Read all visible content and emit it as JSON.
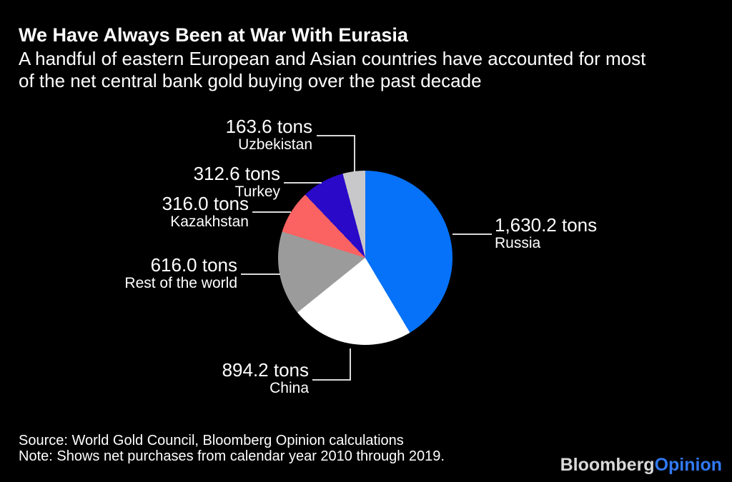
{
  "header": {
    "title": "We Have Always Been at War With Eurasia",
    "subtitle_line1": "A handful of eastern European and Asian countries have accounted for most",
    "subtitle_line2": "of the net central bank gold buying over the past decade"
  },
  "chart_data": {
    "type": "pie",
    "title": "We Have Always Been at War With Eurasia",
    "unit": "tons",
    "start_angle_deg": 0,
    "direction": "clockwise",
    "legend_position": "callout-labels",
    "background_color": "#000000",
    "leader_line_color": "#d9d9d9",
    "slices": [
      {
        "label": "Russia",
        "value": 1630.2,
        "value_text": "1,630.2 tons",
        "color": "#0672fa"
      },
      {
        "label": "China",
        "value": 894.2,
        "value_text": "894.2 tons",
        "color": "#ffffff"
      },
      {
        "label": "Rest of the world",
        "value": 616.0,
        "value_text": "616.0 tons",
        "color": "#9b9b9b"
      },
      {
        "label": "Kazakhstan",
        "value": 316.0,
        "value_text": "316.0 tons",
        "color": "#fb6262"
      },
      {
        "label": "Turkey",
        "value": 312.6,
        "value_text": "312.6 tons",
        "color": "#2a0ac8"
      },
      {
        "label": "Uzbekistan",
        "value": 163.6,
        "value_text": "163.6 tons",
        "color": "#c8c8ca"
      }
    ]
  },
  "footer": {
    "source": "Source: World Gold Council, Bloomberg Opinion calculations",
    "note": "Note: Shows net purchases from calendar year 2010 through 2019.",
    "logo": {
      "bloomberg": "Bloomberg",
      "opinion": "Opinion",
      "opinion_color": "#3179f2"
    }
  }
}
